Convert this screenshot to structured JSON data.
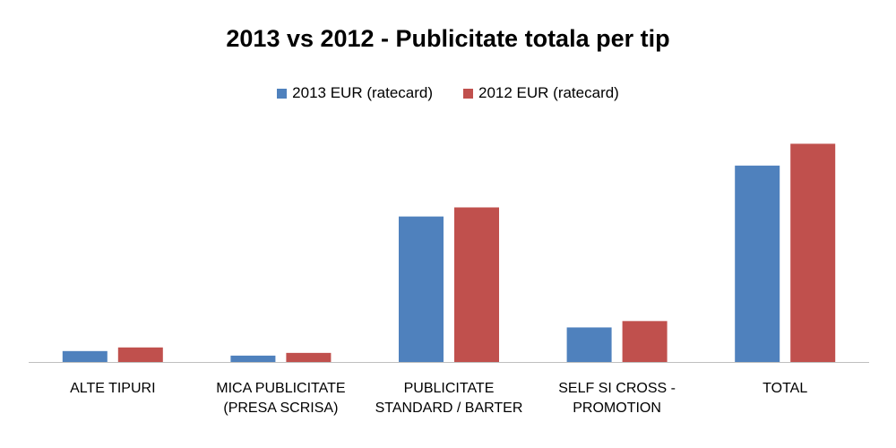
{
  "chart_data": {
    "type": "bar",
    "title": "2013 vs 2012 - Publicitate totala per tip",
    "xlabel": "",
    "ylabel": "",
    "categories": [
      [
        "ALTE TIPURI"
      ],
      [
        "MICA PUBLICITATE",
        "(PRESA SCRISA)"
      ],
      [
        "PUBLICITATE",
        "STANDARD / BARTER"
      ],
      [
        "SELF SI CROSS -",
        "PROMOTION"
      ],
      [
        "TOTAL"
      ]
    ],
    "series": [
      {
        "name": "2013 EUR (ratecard)",
        "color": "#4F81BD",
        "values": [
          1.2,
          0.7,
          16.0,
          3.8,
          21.6
        ]
      },
      {
        "name": "2012 EUR (ratecard)",
        "color": "#C0504D",
        "values": [
          1.6,
          1.0,
          17.0,
          4.5,
          24.0
        ]
      }
    ],
    "ylim": [
      0,
      27
    ],
    "grid": false,
    "legend_position": "top"
  }
}
